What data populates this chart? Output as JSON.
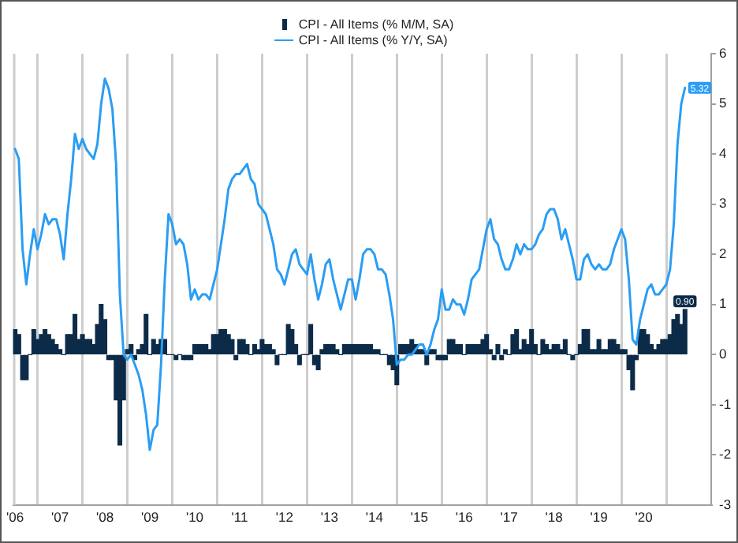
{
  "chart_data": {
    "type": "bar",
    "legend": "top",
    "grid": "x",
    "marker": "none",
    "xlim": [
      "2006-06-15",
      "2022-01"
    ],
    "xticks": [
      {
        "value": "2006-07",
        "label": "'06"
      },
      {
        "value": "2007-01",
        "label": null
      },
      {
        "value": "2007-07",
        "label": "'07"
      },
      {
        "value": "2008-01",
        "label": null
      },
      {
        "value": "2008-07",
        "label": "'08"
      },
      {
        "value": "2009-01",
        "label": null
      },
      {
        "value": "2009-07",
        "label": "'09"
      },
      {
        "value": "2010-01",
        "label": null
      },
      {
        "value": "2010-07",
        "label": "'10"
      },
      {
        "value": "2011-01",
        "label": null
      },
      {
        "value": "2011-07",
        "label": "'11"
      },
      {
        "value": "2012-01",
        "label": null
      },
      {
        "value": "2012-07",
        "label": "'12"
      },
      {
        "value": "2013-01",
        "label": null
      },
      {
        "value": "2013-07",
        "label": "'13"
      },
      {
        "value": "2014-01",
        "label": null
      },
      {
        "value": "2014-07",
        "label": "'14"
      },
      {
        "value": "2015-01",
        "label": null
      },
      {
        "value": "2015-07",
        "label": "'15"
      },
      {
        "value": "2016-01",
        "label": null
      },
      {
        "value": "2016-07",
        "label": "'16"
      },
      {
        "value": "2017-01",
        "label": null
      },
      {
        "value": "2017-07",
        "label": "'17"
      },
      {
        "value": "2018-01",
        "label": null
      },
      {
        "value": "2018-07",
        "label": "'18"
      },
      {
        "value": "2019-01",
        "label": null
      },
      {
        "value": "2019-07",
        "label": "'19"
      },
      {
        "value": "2020-01",
        "label": null
      },
      {
        "value": "2020-07",
        "label": "'20"
      },
      {
        "value": "2021-01",
        "label": null
      }
    ],
    "ylim": [
      -3,
      6
    ],
    "yticks": [
      -3,
      -2,
      -1,
      0,
      1,
      2,
      3,
      4,
      5,
      6
    ],
    "x": [
      "2006-07",
      "2006-08",
      "2006-09",
      "2006-10",
      "2006-11",
      "2006-12",
      "2007-01",
      "2007-02",
      "2007-03",
      "2007-04",
      "2007-05",
      "2007-06",
      "2007-07",
      "2007-08",
      "2007-09",
      "2007-10",
      "2007-11",
      "2007-12",
      "2008-01",
      "2008-02",
      "2008-03",
      "2008-04",
      "2008-05",
      "2008-06",
      "2008-07",
      "2008-08",
      "2008-09",
      "2008-10",
      "2008-11",
      "2008-12",
      "2009-01",
      "2009-02",
      "2009-03",
      "2009-04",
      "2009-05",
      "2009-06",
      "2009-07",
      "2009-08",
      "2009-09",
      "2009-10",
      "2009-11",
      "2009-12",
      "2010-01",
      "2010-02",
      "2010-03",
      "2010-04",
      "2010-05",
      "2010-06",
      "2010-07",
      "2010-08",
      "2010-09",
      "2010-10",
      "2010-11",
      "2010-12",
      "2011-01",
      "2011-02",
      "2011-03",
      "2011-04",
      "2011-05",
      "2011-06",
      "2011-07",
      "2011-08",
      "2011-09",
      "2011-10",
      "2011-11",
      "2011-12",
      "2012-01",
      "2012-02",
      "2012-03",
      "2012-04",
      "2012-05",
      "2012-06",
      "2012-07",
      "2012-08",
      "2012-09",
      "2012-10",
      "2012-11",
      "2012-12",
      "2013-01",
      "2013-02",
      "2013-03",
      "2013-04",
      "2013-05",
      "2013-06",
      "2013-07",
      "2013-08",
      "2013-09",
      "2013-10",
      "2013-11",
      "2013-12",
      "2014-01",
      "2014-02",
      "2014-03",
      "2014-04",
      "2014-05",
      "2014-06",
      "2014-07",
      "2014-08",
      "2014-09",
      "2014-10",
      "2014-11",
      "2014-12",
      "2015-01",
      "2015-02",
      "2015-03",
      "2015-04",
      "2015-05",
      "2015-06",
      "2015-07",
      "2015-08",
      "2015-09",
      "2015-10",
      "2015-11",
      "2015-12",
      "2016-01",
      "2016-02",
      "2016-03",
      "2016-04",
      "2016-05",
      "2016-06",
      "2016-07",
      "2016-08",
      "2016-09",
      "2016-10",
      "2016-11",
      "2016-12",
      "2017-01",
      "2017-02",
      "2017-03",
      "2017-04",
      "2017-05",
      "2017-06",
      "2017-07",
      "2017-08",
      "2017-09",
      "2017-10",
      "2017-11",
      "2017-12",
      "2018-01",
      "2018-02",
      "2018-03",
      "2018-04",
      "2018-05",
      "2018-06",
      "2018-07",
      "2018-08",
      "2018-09",
      "2018-10",
      "2018-11",
      "2018-12",
      "2019-01",
      "2019-02",
      "2019-03",
      "2019-04",
      "2019-05",
      "2019-06",
      "2019-07",
      "2019-08",
      "2019-09",
      "2019-10",
      "2019-11",
      "2019-12",
      "2020-01",
      "2020-02",
      "2020-03",
      "2020-04",
      "2020-05",
      "2020-06",
      "2020-07",
      "2020-08",
      "2020-09",
      "2020-10",
      "2020-11",
      "2020-12",
      "2021-01",
      "2021-02",
      "2021-03",
      "2021-04",
      "2021-05",
      "2021-06"
    ],
    "series": [
      {
        "name": "CPI - All Items (% M/M, SA)",
        "color": "#0b2b48",
        "values": [
          0.5,
          0.4,
          -0.5,
          -0.5,
          0.0,
          0.5,
          0.3,
          0.4,
          0.5,
          0.4,
          0.3,
          0.2,
          0.1,
          0.0,
          0.4,
          0.4,
          0.8,
          0.3,
          0.4,
          0.3,
          0.3,
          0.2,
          0.6,
          1.0,
          0.7,
          -0.1,
          -0.1,
          -0.9,
          -1.8,
          -0.9,
          0.1,
          0.2,
          -0.1,
          0.1,
          0.2,
          0.8,
          0.0,
          0.3,
          0.2,
          0.3,
          0.3,
          0.0,
          0.0,
          -0.1,
          0.0,
          -0.1,
          -0.1,
          -0.1,
          0.2,
          0.2,
          0.2,
          0.2,
          0.1,
          0.4,
          0.4,
          0.5,
          0.5,
          0.4,
          0.3,
          -0.1,
          0.3,
          0.3,
          0.2,
          0.0,
          0.2,
          0.1,
          0.3,
          0.2,
          0.2,
          0.1,
          -0.2,
          0.0,
          0.0,
          0.6,
          0.5,
          0.2,
          -0.2,
          0.0,
          0.0,
          0.6,
          -0.2,
          -0.3,
          0.1,
          0.2,
          0.2,
          0.2,
          0.1,
          0.0,
          0.2,
          0.2,
          0.2,
          0.2,
          0.2,
          0.2,
          0.2,
          0.2,
          0.1,
          0.1,
          0.0,
          0.0,
          -0.2,
          -0.3,
          -0.6,
          0.2,
          0.2,
          0.2,
          0.3,
          0.2,
          0.1,
          0.1,
          -0.2,
          0.1,
          0.1,
          -0.1,
          -0.1,
          -0.1,
          0.3,
          0.3,
          0.2,
          0.2,
          0.0,
          0.2,
          0.2,
          0.2,
          0.2,
          0.3,
          0.4,
          0.1,
          -0.1,
          0.2,
          -0.1,
          0.1,
          0.0,
          0.4,
          0.5,
          0.1,
          0.3,
          0.2,
          0.5,
          0.2,
          0.0,
          0.3,
          0.2,
          0.1,
          0.2,
          0.2,
          0.1,
          0.3,
          0.0,
          -0.1,
          0.0,
          0.2,
          0.5,
          0.5,
          0.1,
          0.1,
          0.3,
          0.1,
          0.1,
          0.3,
          0.3,
          0.2,
          0.1,
          0.1,
          -0.3,
          -0.7,
          -0.1,
          0.5,
          0.5,
          0.4,
          0.2,
          0.1,
          0.2,
          0.3,
          0.3,
          0.4,
          0.7,
          0.8,
          0.6,
          0.9
        ],
        "value_labels": [
          null,
          null,
          null,
          null,
          null,
          null,
          null,
          null,
          null,
          null,
          null,
          null,
          null,
          null,
          null,
          null,
          null,
          null,
          null,
          null,
          null,
          null,
          null,
          null,
          null,
          null,
          null,
          null,
          null,
          null,
          null,
          null,
          null,
          null,
          null,
          null,
          null,
          null,
          null,
          null,
          null,
          null,
          null,
          null,
          null,
          null,
          null,
          null,
          null,
          null,
          null,
          null,
          null,
          null,
          null,
          null,
          null,
          null,
          null,
          null,
          null,
          null,
          null,
          null,
          null,
          null,
          null,
          null,
          null,
          null,
          null,
          null,
          null,
          null,
          null,
          null,
          null,
          null,
          null,
          null,
          null,
          null,
          null,
          null,
          null,
          null,
          null,
          null,
          null,
          null,
          null,
          null,
          null,
          null,
          null,
          null,
          null,
          null,
          null,
          null,
          null,
          null,
          null,
          null,
          null,
          null,
          null,
          null,
          null,
          null,
          null,
          null,
          null,
          null,
          null,
          null,
          null,
          null,
          null,
          null,
          null,
          null,
          null,
          null,
          null,
          null,
          null,
          null,
          null,
          null,
          null,
          null,
          null,
          null,
          null,
          null,
          null,
          null,
          null,
          null,
          null,
          null,
          null,
          null,
          null,
          null,
          null,
          null,
          null,
          null,
          null,
          null,
          null,
          null,
          null,
          null,
          null,
          null,
          null,
          null,
          null,
          null,
          null,
          null,
          null,
          null,
          null,
          null,
          null,
          null,
          null,
          null,
          null,
          null,
          null,
          null,
          null,
          null,
          null,
          "0.90"
        ]
      },
      {
        "name": "CPI - All Items (% Y/Y, SA)",
        "type": "line",
        "color": "#2a9df4",
        "values": [
          4.1,
          3.9,
          2.1,
          1.4,
          2.0,
          2.5,
          2.1,
          2.4,
          2.8,
          2.6,
          2.7,
          2.7,
          2.4,
          1.9,
          2.8,
          3.5,
          4.4,
          4.1,
          4.3,
          4.1,
          4.0,
          3.9,
          4.2,
          5.0,
          5.5,
          5.3,
          4.9,
          3.8,
          1.2,
          0.0,
          -0.1,
          0.0,
          -0.2,
          -0.4,
          -0.7,
          -1.2,
          -1.9,
          -1.5,
          -1.4,
          -0.2,
          1.5,
          2.8,
          2.6,
          2.2,
          2.3,
          2.2,
          1.8,
          1.1,
          1.3,
          1.1,
          1.2,
          1.2,
          1.1,
          1.4,
          1.7,
          2.2,
          2.7,
          3.3,
          3.5,
          3.6,
          3.6,
          3.7,
          3.8,
          3.5,
          3.4,
          3.0,
          2.9,
          2.8,
          2.5,
          2.2,
          1.7,
          1.6,
          1.4,
          1.7,
          2.0,
          2.1,
          1.8,
          1.7,
          1.6,
          2.0,
          1.5,
          1.1,
          1.4,
          1.8,
          1.9,
          1.5,
          1.2,
          0.9,
          1.2,
          1.5,
          1.5,
          1.1,
          1.5,
          2.0,
          2.1,
          2.1,
          2.0,
          1.7,
          1.7,
          1.6,
          1.2,
          0.7,
          -0.2,
          -0.1,
          -0.1,
          0.0,
          0.0,
          0.1,
          0.2,
          0.2,
          0.0,
          0.2,
          0.5,
          0.7,
          1.3,
          0.9,
          0.9,
          1.1,
          1.0,
          1.0,
          0.8,
          1.1,
          1.5,
          1.6,
          1.7,
          2.1,
          2.5,
          2.7,
          2.3,
          2.2,
          1.9,
          1.7,
          1.7,
          1.9,
          2.2,
          2.0,
          2.2,
          2.1,
          2.1,
          2.2,
          2.4,
          2.5,
          2.8,
          2.9,
          2.9,
          2.7,
          2.3,
          2.5,
          2.2,
          1.9,
          1.5,
          1.5,
          1.9,
          2.0,
          1.8,
          1.7,
          1.8,
          1.7,
          1.7,
          1.8,
          2.1,
          2.3,
          2.5,
          2.3,
          1.5,
          0.3,
          0.2,
          0.7,
          1.0,
          1.3,
          1.4,
          1.2,
          1.2,
          1.3,
          1.4,
          1.7,
          2.6,
          4.2,
          5.0,
          5.32
        ],
        "value_labels": [
          null,
          null,
          null,
          null,
          null,
          null,
          null,
          null,
          null,
          null,
          null,
          null,
          null,
          null,
          null,
          null,
          null,
          null,
          null,
          null,
          null,
          null,
          null,
          null,
          null,
          null,
          null,
          null,
          null,
          null,
          null,
          null,
          null,
          null,
          null,
          null,
          null,
          null,
          null,
          null,
          null,
          null,
          null,
          null,
          null,
          null,
          null,
          null,
          null,
          null,
          null,
          null,
          null,
          null,
          null,
          null,
          null,
          null,
          null,
          null,
          null,
          null,
          null,
          null,
          null,
          null,
          null,
          null,
          null,
          null,
          null,
          null,
          null,
          null,
          null,
          null,
          null,
          null,
          null,
          null,
          null,
          null,
          null,
          null,
          null,
          null,
          null,
          null,
          null,
          null,
          null,
          null,
          null,
          null,
          null,
          null,
          null,
          null,
          null,
          null,
          null,
          null,
          null,
          null,
          null,
          null,
          null,
          null,
          null,
          null,
          null,
          null,
          null,
          null,
          null,
          null,
          null,
          null,
          null,
          null,
          null,
          null,
          null,
          null,
          null,
          null,
          null,
          null,
          null,
          null,
          null,
          null,
          null,
          null,
          null,
          null,
          null,
          null,
          null,
          null,
          null,
          null,
          null,
          null,
          null,
          null,
          null,
          null,
          null,
          null,
          null,
          null,
          null,
          null,
          null,
          null,
          null,
          null,
          null,
          null,
          null,
          null,
          null,
          null,
          null,
          null,
          null,
          null,
          null,
          null,
          null,
          null,
          null,
          null,
          null,
          null,
          null,
          null,
          null,
          "5.32"
        ]
      }
    ]
  }
}
